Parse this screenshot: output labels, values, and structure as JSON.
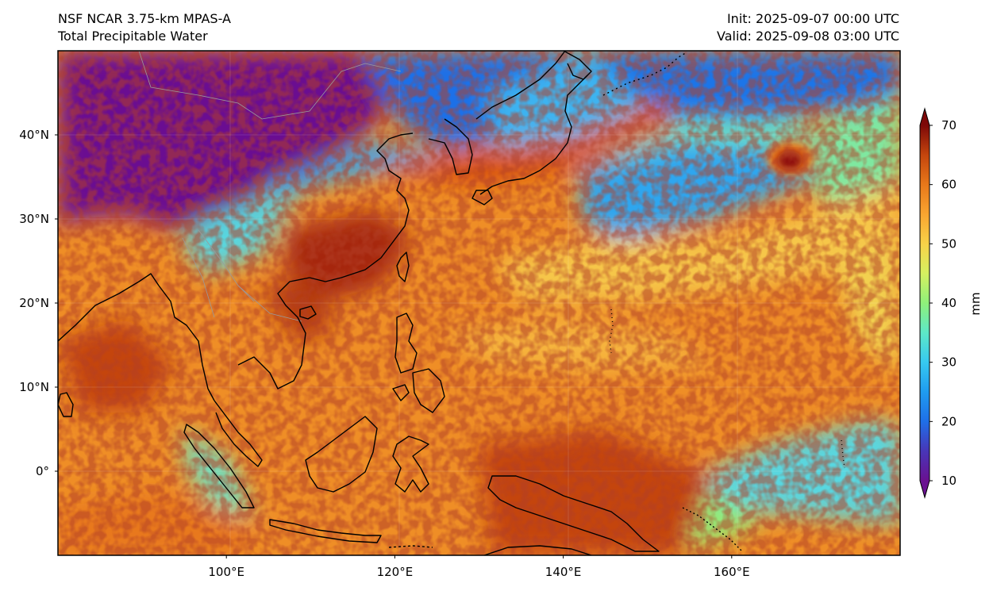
{
  "header": {
    "model_name": "NSF NCAR 3.75-km MPAS-A",
    "field_name": "Total Precipitable Water",
    "init_time": "Init: 2025-09-07 00:00 UTC",
    "valid_time": "Valid: 2025-09-08 03:00 UTC"
  },
  "map": {
    "projection": "equirectangular",
    "lon_range": [
      80,
      180
    ],
    "lat_range": [
      -10,
      50
    ],
    "lon_ticks": [
      {
        "value": 100,
        "label": "100°E"
      },
      {
        "value": 120,
        "label": "120°E"
      },
      {
        "value": 140,
        "label": "140°E"
      },
      {
        "value": 160,
        "label": "160°E"
      }
    ],
    "lat_ticks": [
      {
        "value": 40,
        "label": "40°N"
      },
      {
        "value": 30,
        "label": "30°N"
      },
      {
        "value": 20,
        "label": "20°N"
      },
      {
        "value": 10,
        "label": "10°N"
      },
      {
        "value": 0,
        "label": "0°"
      }
    ],
    "field_units": "mm"
  },
  "colorbar": {
    "label": "mm",
    "range": [
      10,
      70
    ],
    "extend": "both",
    "ticks": [
      {
        "value": 10,
        "label": "10"
      },
      {
        "value": 20,
        "label": "20"
      },
      {
        "value": 30,
        "label": "30"
      },
      {
        "value": 40,
        "label": "40"
      },
      {
        "value": 50,
        "label": "50"
      },
      {
        "value": 60,
        "label": "60"
      },
      {
        "value": 70,
        "label": "70"
      }
    ],
    "color_stops": [
      {
        "value": 10,
        "color": "#6a1191"
      },
      {
        "value": 15,
        "color": "#4836b8"
      },
      {
        "value": 20,
        "color": "#1f6fe8"
      },
      {
        "value": 25,
        "color": "#1f9cf0"
      },
      {
        "value": 30,
        "color": "#37c9f0"
      },
      {
        "value": 35,
        "color": "#5de8c8"
      },
      {
        "value": 40,
        "color": "#8ff07a"
      },
      {
        "value": 45,
        "color": "#d6f060"
      },
      {
        "value": 50,
        "color": "#f8d248"
      },
      {
        "value": 55,
        "color": "#f9a530"
      },
      {
        "value": 60,
        "color": "#e8781a"
      },
      {
        "value": 65,
        "color": "#c4450d"
      },
      {
        "value": 70,
        "color": "#7d0808"
      }
    ]
  },
  "colors": {
    "coastline": "#000000",
    "border": "#9a9a9a",
    "frame": "#000000"
  }
}
